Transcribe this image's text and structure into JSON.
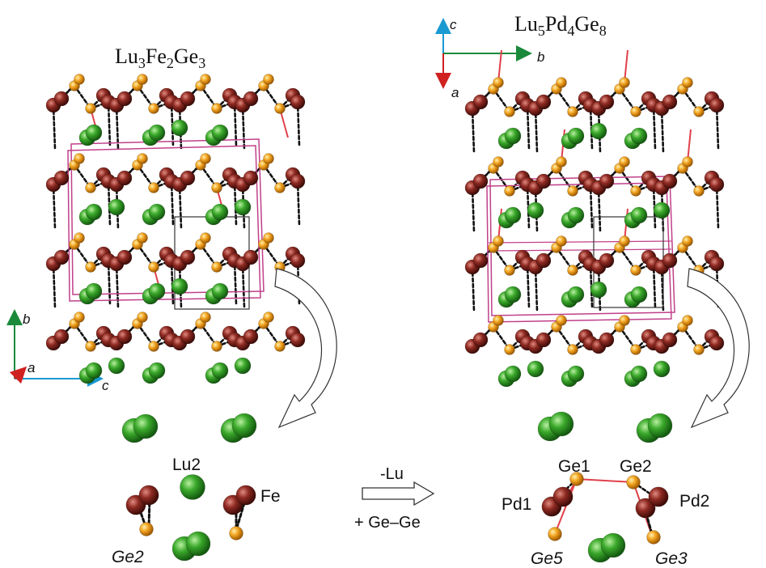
{
  "left_structure": {
    "title_main": "Lu",
    "title_parts": [
      {
        "text": "Lu",
        "sub": "3"
      },
      {
        "text": "Fe",
        "sub": "2"
      },
      {
        "text": "Ge",
        "sub": "3"
      }
    ],
    "axes": {
      "vertical": "b",
      "horizontal": "c",
      "out_of_plane": "a"
    }
  },
  "right_structure": {
    "title_parts": [
      {
        "text": "Lu",
        "sub": "5"
      },
      {
        "text": "Pd",
        "sub": "4"
      },
      {
        "text": "Ge",
        "sub": "8"
      }
    ],
    "axes": {
      "vertical": "c",
      "horizontal": "b",
      "down": "a"
    }
  },
  "left_fragment_labels": {
    "lu": "Lu2",
    "transition_metal": "Fe",
    "ge": "Ge2"
  },
  "right_fragment_labels": {
    "ge1": "Ge1",
    "ge2": "Ge2",
    "pd1": "Pd1",
    "pd2": "Pd2",
    "ge5": "Ge5",
    "ge3": "Ge3"
  },
  "transformation": {
    "top": "-Lu",
    "bottom": "+ Ge–Ge"
  },
  "colors": {
    "lu": "#3a9a2a",
    "fe_pd": "#8e2a22",
    "ge": "#f0a020",
    "cell": "#c0408a",
    "bond_red": "#e0404a",
    "axis_green": "#1a8a3a",
    "axis_blue": "#1a9ad0",
    "axis_red": "#d02020"
  }
}
